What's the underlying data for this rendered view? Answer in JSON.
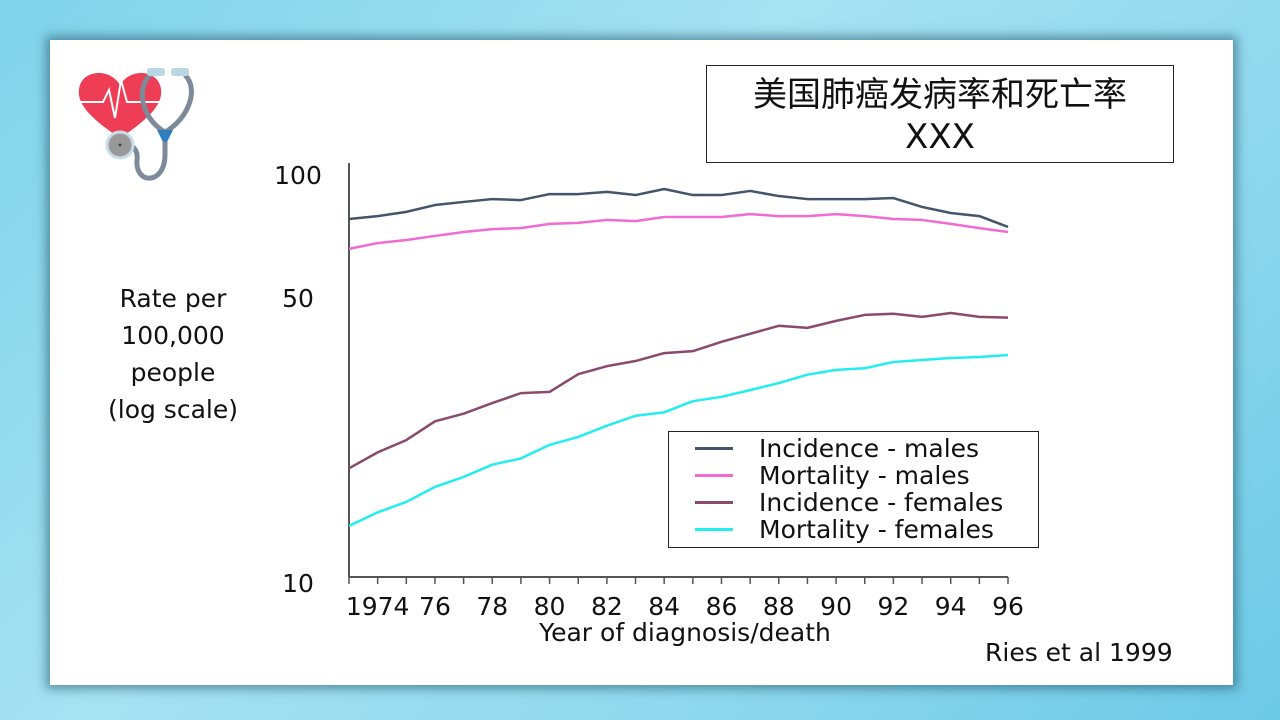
{
  "title": {
    "line1": "美国肺癌发病率和死亡率",
    "line2": "XXX"
  },
  "source": "Ries et al 1999",
  "chart_data": {
    "type": "line",
    "title": "美国肺癌发病率和死亡率 XXX",
    "xlabel": "Year of diagnosis/death",
    "ylabel": "Rate per 100,000 people (log scale)",
    "ylabel_lines": [
      "Rate per",
      "100,000",
      "people",
      "(log scale)"
    ],
    "yscale": "log",
    "ylim": [
      10,
      100
    ],
    "xlim": [
      1973,
      1996
    ],
    "y_ticks": [
      {
        "value": 100,
        "label": "100"
      },
      {
        "value": 50,
        "label": "50"
      },
      {
        "value": 10,
        "label": "10"
      }
    ],
    "x_tick_labels": [
      {
        "value": 1974,
        "label": "1974"
      },
      {
        "value": 1976,
        "label": "76"
      },
      {
        "value": 1978,
        "label": "78"
      },
      {
        "value": 1980,
        "label": "80"
      },
      {
        "value": 1982,
        "label": "82"
      },
      {
        "value": 1984,
        "label": "84"
      },
      {
        "value": 1986,
        "label": "86"
      },
      {
        "value": 1988,
        "label": "88"
      },
      {
        "value": 1990,
        "label": "90"
      },
      {
        "value": 1992,
        "label": "92"
      },
      {
        "value": 1994,
        "label": "94"
      },
      {
        "value": 1996,
        "label": "96"
      }
    ],
    "x": [
      1973,
      1974,
      1975,
      1976,
      1977,
      1978,
      1979,
      1980,
      1981,
      1982,
      1983,
      1984,
      1985,
      1986,
      1987,
      1988,
      1989,
      1990,
      1991,
      1992,
      1993,
      1994,
      1995,
      1996
    ],
    "legend_position": "bottom-right",
    "series": [
      {
        "name": "Incidence - males",
        "color": "#44546a",
        "values": [
          78.0,
          79.3,
          81.2,
          84.4,
          85.9,
          87.3,
          86.8,
          89.8,
          89.8,
          90.9,
          89.3,
          92.4,
          89.3,
          89.3,
          91.4,
          88.8,
          87.3,
          87.3,
          87.3,
          87.8,
          83.5,
          80.7,
          79.3,
          74.6
        ]
      },
      {
        "name": "Mortality - males",
        "color": "#f06bd2",
        "values": [
          65.9,
          68.1,
          69.3,
          70.9,
          72.5,
          73.7,
          74.1,
          75.9,
          76.3,
          77.6,
          77.1,
          78.9,
          78.9,
          78.9,
          80.2,
          79.3,
          79.3,
          80.2,
          79.3,
          78.0,
          77.6,
          75.9,
          74.1,
          72.5
        ]
      },
      {
        "name": "Incidence - females",
        "color": "#8a4a6c",
        "values": [
          19.1,
          20.9,
          22.4,
          24.9,
          26.0,
          27.6,
          29.2,
          29.4,
          32.5,
          34.0,
          35.0,
          36.6,
          37.0,
          39.0,
          40.8,
          42.7,
          42.2,
          43.9,
          45.4,
          45.7,
          44.9,
          45.9,
          44.9,
          44.7
        ]
      },
      {
        "name": "Mortality - females",
        "color": "#22eef0",
        "values": [
          13.8,
          14.9,
          15.8,
          17.2,
          18.2,
          19.5,
          20.2,
          21.8,
          22.8,
          24.3,
          25.7,
          26.2,
          27.9,
          28.6,
          29.7,
          30.9,
          32.4,
          33.3,
          33.6,
          34.8,
          35.2,
          35.6,
          35.8,
          36.2
        ]
      }
    ]
  }
}
